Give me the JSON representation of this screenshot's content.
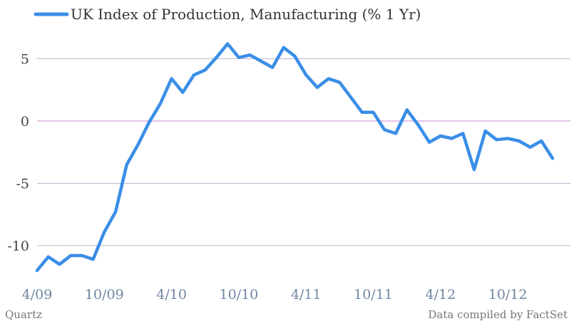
{
  "colors": {
    "line": "#3a8ee6",
    "grid": "#b9b9cf",
    "zero_line": "#cf86cf",
    "ytick": "#444444",
    "xtick": "#6f86a3"
  },
  "footer": {
    "left": "Quartz",
    "right": "Data compiled by FactSet"
  },
  "chart_data": {
    "type": "line",
    "title": "",
    "xlabel": "",
    "ylabel": "",
    "ylim": [
      -12,
      7
    ],
    "yticks": [
      5,
      0,
      -5,
      -10
    ],
    "ytick_labels": [
      "5",
      "0",
      "-5",
      "-10"
    ],
    "grid": true,
    "legend_position": "top-left",
    "x": [
      "2009-04",
      "2009-05",
      "2009-06",
      "2009-07",
      "2009-08",
      "2009-09",
      "2009-10",
      "2009-11",
      "2009-12",
      "2010-01",
      "2010-02",
      "2010-03",
      "2010-04",
      "2010-05",
      "2010-06",
      "2010-07",
      "2010-08",
      "2010-09",
      "2010-10",
      "2010-11",
      "2010-12",
      "2011-01",
      "2011-02",
      "2011-03",
      "2011-04",
      "2011-05",
      "2011-06",
      "2011-07",
      "2011-08",
      "2011-09",
      "2011-10",
      "2011-11",
      "2011-12",
      "2012-01",
      "2012-02",
      "2012-03",
      "2012-04",
      "2012-05",
      "2012-06",
      "2012-07",
      "2012-08",
      "2012-09",
      "2012-10",
      "2012-11",
      "2012-12",
      "2013-01",
      "2013-02"
    ],
    "xtick_labels": [
      {
        "x": "2009-04",
        "label": "4/09"
      },
      {
        "x": "2009-10",
        "label": "10/09"
      },
      {
        "x": "2010-04",
        "label": "4/10"
      },
      {
        "x": "2010-10",
        "label": "10/10"
      },
      {
        "x": "2011-04",
        "label": "4/11"
      },
      {
        "x": "2011-10",
        "label": "10/11"
      },
      {
        "x": "2012-04",
        "label": "4/12"
      },
      {
        "x": "2012-10",
        "label": "10/12"
      }
    ],
    "series": [
      {
        "name": "UK Index of Production, Manufacturing (% 1 Yr)",
        "values": [
          -12.0,
          -10.9,
          -11.5,
          -10.8,
          -10.8,
          -11.1,
          -8.9,
          -7.3,
          -3.5,
          -1.9,
          -0.1,
          1.4,
          3.4,
          2.3,
          3.7,
          4.1,
          5.1,
          6.2,
          5.1,
          5.3,
          4.8,
          4.3,
          5.9,
          5.2,
          3.7,
          2.7,
          3.4,
          3.1,
          1.9,
          0.7,
          0.7,
          -0.7,
          -1.0,
          0.9,
          -0.3,
          -1.7,
          -1.2,
          -1.4,
          -1.0,
          -3.9,
          -0.8,
          -1.5,
          -1.4,
          -1.6,
          -2.1,
          -1.6,
          -3.0
        ]
      }
    ]
  }
}
